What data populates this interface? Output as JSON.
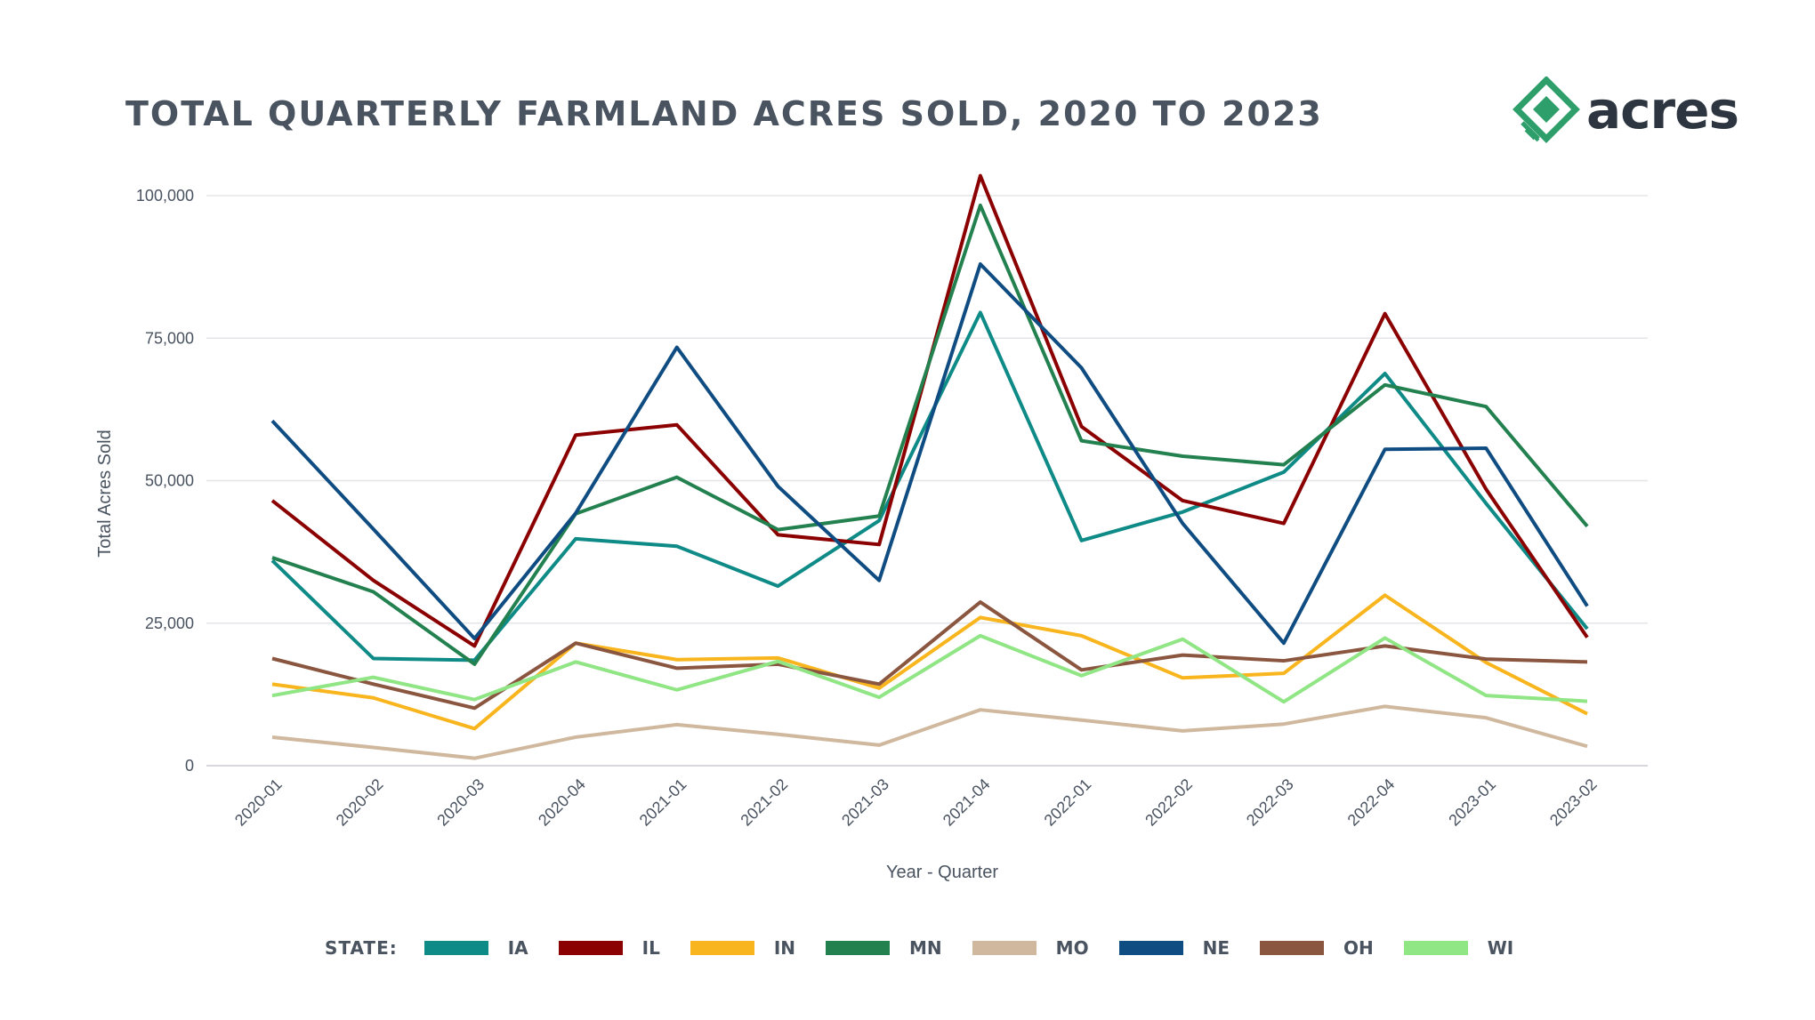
{
  "title": "TOTAL QUARTERLY FARMLAND ACRES SOLD, 2020 TO 2023",
  "logo": {
    "text": "acres",
    "icon": "acres-logo-icon",
    "color": "#2e9e6b"
  },
  "legend": {
    "title": "STATE:"
  },
  "chart_data": {
    "type": "line",
    "title": "TOTAL QUARTERLY FARMLAND ACRES SOLD, 2020 TO 2023",
    "xlabel": "Year - Quarter",
    "ylabel": "Total Acres Sold",
    "ylim": [
      0,
      105000
    ],
    "yticks": [
      0,
      25000,
      50000,
      75000,
      100000
    ],
    "ytick_labels": [
      "0",
      "25,000",
      "50,000",
      "75,000",
      "100,000"
    ],
    "grid": true,
    "legend_position": "bottom",
    "categories": [
      "2020-01",
      "2020-02",
      "2020-03",
      "2020-04",
      "2021-01",
      "2021-02",
      "2021-03",
      "2021-04",
      "2022-01",
      "2022-02",
      "2022-03",
      "2022-04",
      "2023-01",
      "2023-02"
    ],
    "series": [
      {
        "name": "IA",
        "color": "#0e8a87",
        "values": [
          36000,
          18800,
          18500,
          39800,
          38500,
          31500,
          43000,
          79500,
          39500,
          44500,
          51500,
          68800,
          46000,
          24000
        ]
      },
      {
        "name": "IL",
        "color": "#8b0000",
        "values": [
          46500,
          32500,
          21000,
          58000,
          59800,
          40500,
          38800,
          103500,
          59500,
          46500,
          42500,
          79300,
          48500,
          22500
        ]
      },
      {
        "name": "IN",
        "color": "#f8b51d",
        "values": [
          14300,
          11900,
          6500,
          21500,
          18600,
          18900,
          13600,
          26000,
          22800,
          15400,
          16200,
          29900,
          18100,
          9100
        ]
      },
      {
        "name": "MN",
        "color": "#238150",
        "values": [
          36500,
          30500,
          17800,
          44200,
          50600,
          41400,
          43800,
          98300,
          57000,
          54300,
          52800,
          66800,
          63000,
          42000
        ]
      },
      {
        "name": "MO",
        "color": "#cfb89d",
        "values": [
          5000,
          3200,
          1300,
          5000,
          7200,
          5500,
          3600,
          9800,
          8000,
          6100,
          7300,
          10400,
          8400,
          3400
        ]
      },
      {
        "name": "NE",
        "color": "#0f4c81",
        "values": [
          60500,
          41500,
          22300,
          44300,
          73400,
          49000,
          32500,
          88000,
          69800,
          42500,
          21500,
          55500,
          55700,
          28000
        ]
      },
      {
        "name": "OH",
        "color": "#8b5640",
        "values": [
          18800,
          14300,
          10100,
          21500,
          17100,
          17800,
          14300,
          28700,
          16800,
          19400,
          18400,
          21000,
          18700,
          18200
        ]
      },
      {
        "name": "WI",
        "color": "#90e584",
        "values": [
          12300,
          15500,
          11600,
          18200,
          13300,
          18300,
          12000,
          22800,
          15800,
          22200,
          11200,
          22400,
          12300,
          11300
        ]
      }
    ]
  }
}
